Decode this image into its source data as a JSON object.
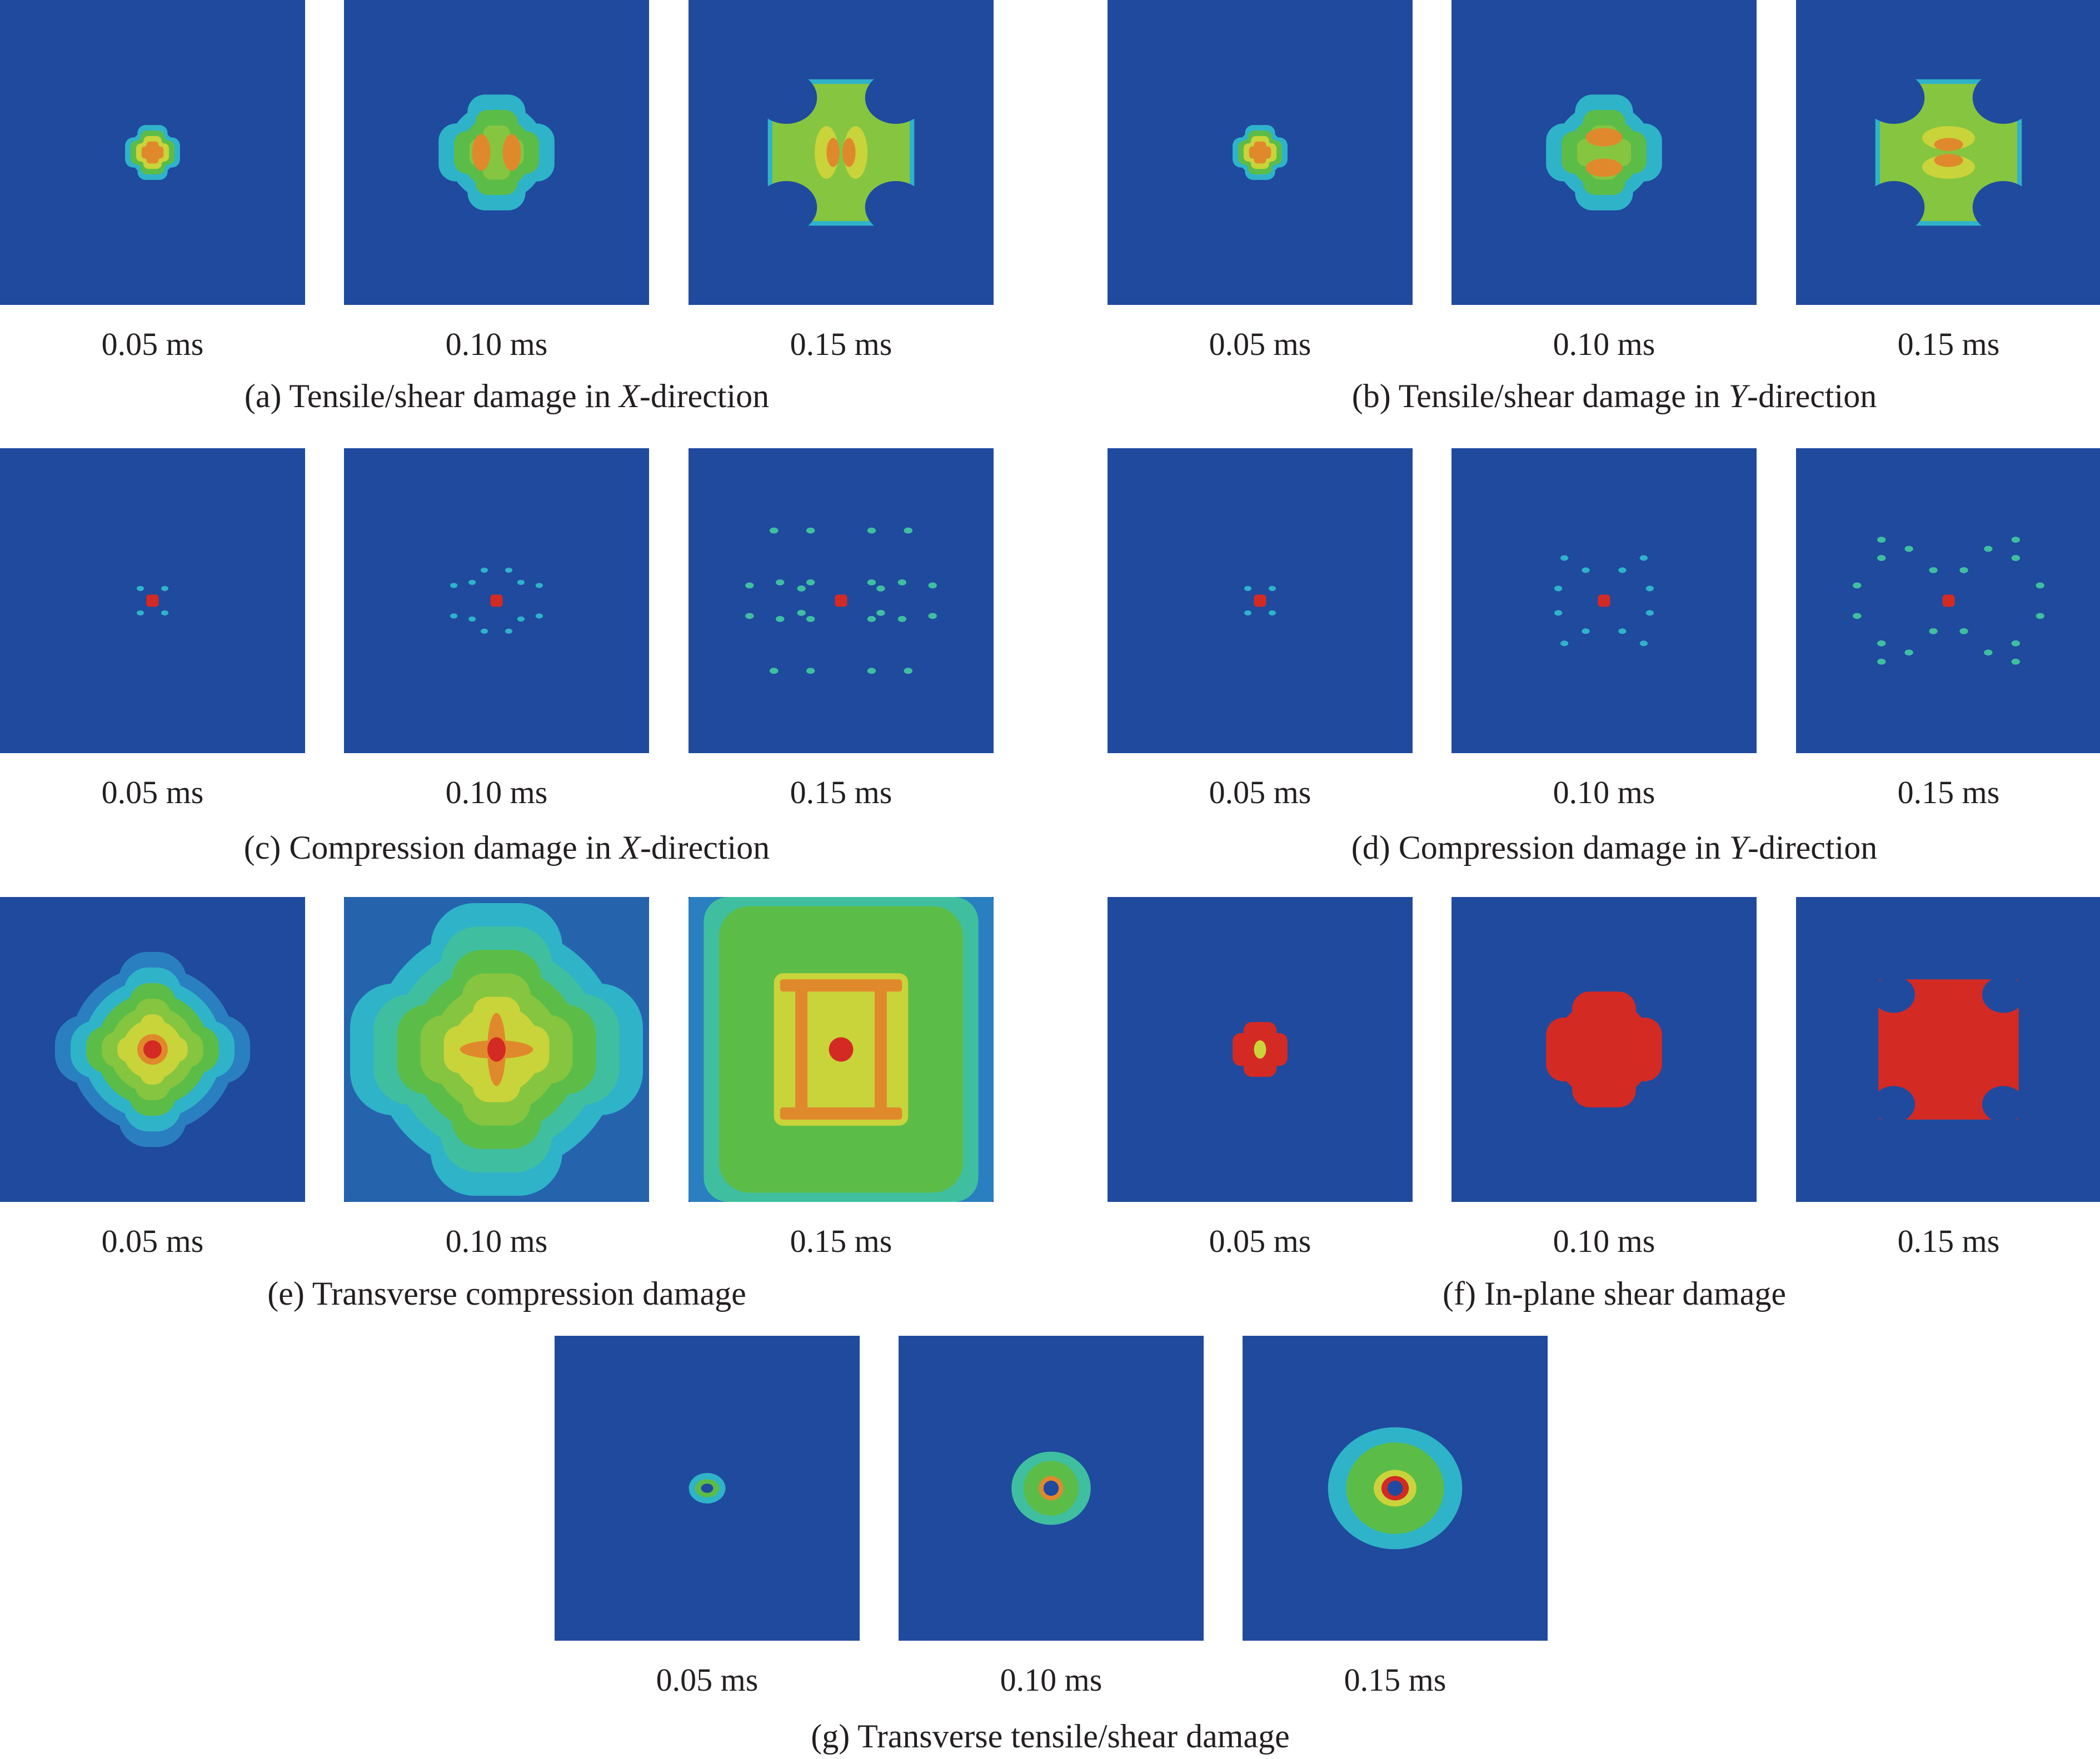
{
  "colors": {
    "background": "#1f4a9e",
    "cyan": "#2fb3c9",
    "teal": "#3fbfa0",
    "green": "#5cbc48",
    "light_green": "#86c540",
    "yellow": "#c9d43a",
    "orange": "#e0892c",
    "red": "#d42a24"
  },
  "groups": [
    {
      "id": "a",
      "caption_pre": "(a) Tensile/shear damage in ",
      "caption_em": "X",
      "caption_post": "-direction",
      "times": [
        "0.05 ms",
        "0.10 ms",
        "0.15 ms"
      ]
    },
    {
      "id": "b",
      "caption_pre": "(b) Tensile/shear damage in ",
      "caption_em": "Y",
      "caption_post": "-direction",
      "times": [
        "0.05 ms",
        "0.10 ms",
        "0.15 ms"
      ]
    },
    {
      "id": "c",
      "caption_pre": "(c) Compression damage in ",
      "caption_em": "X",
      "caption_post": "-direction",
      "times": [
        "0.05 ms",
        "0.10 ms",
        "0.15 ms"
      ]
    },
    {
      "id": "d",
      "caption_pre": "(d) Compression damage in ",
      "caption_em": "Y",
      "caption_post": "-direction",
      "times": [
        "0.05 ms",
        "0.10 ms",
        "0.15 ms"
      ]
    },
    {
      "id": "e",
      "caption_pre": "(e) Transverse compression damage",
      "caption_em": "",
      "caption_post": "",
      "times": [
        "0.05 ms",
        "0.10 ms",
        "0.15 ms"
      ]
    },
    {
      "id": "f",
      "caption_pre": "(f) In-plane shear damage",
      "caption_em": "",
      "caption_post": "",
      "times": [
        "0.05 ms",
        "0.10 ms",
        "0.15 ms"
      ]
    },
    {
      "id": "g",
      "caption_pre": "(g) Transverse tensile/shear damage",
      "caption_em": "",
      "caption_post": "",
      "times": [
        "0.05 ms",
        "0.10 ms",
        "0.15 ms"
      ]
    }
  ]
}
